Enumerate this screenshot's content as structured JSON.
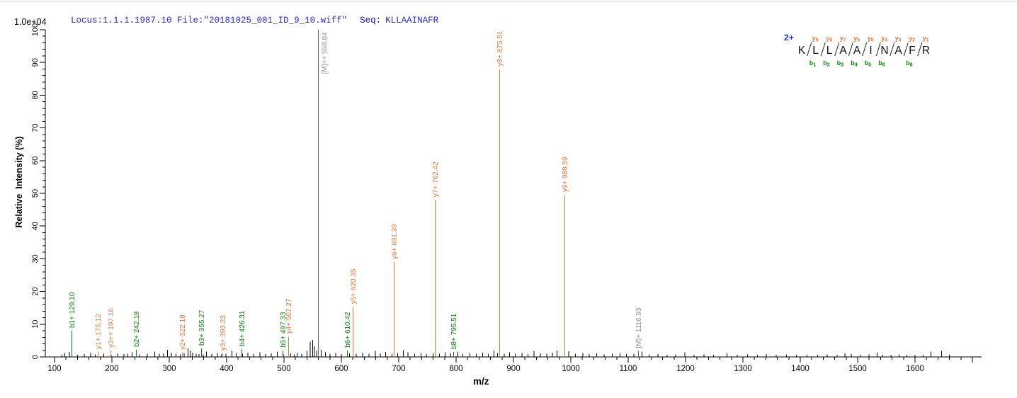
{
  "header": {
    "locus_file": "Locus:1.1.1.1987.10 File:\"20181025_001_ID_9_10.wiff\"",
    "seq_label": "Seq:",
    "sequence": "KLLAAINAFR"
  },
  "plot": {
    "scale_label": "1.0e+04",
    "y_axis_title": "Relative  Intensity (%)",
    "x_axis_title": "m/z"
  },
  "colors": {
    "b_ion": "#0B7F0B",
    "y_ion": "#DF7A3E",
    "precursor_line": "#5F5F5F",
    "precursor_label": "#909090",
    "noise": "#000000",
    "axis": "#000000",
    "header_blue": "#2A2AC0",
    "seq_label_navy": "#13138A",
    "charge_blue": "#2233CC",
    "residue_black": "#111111"
  },
  "chart_data": {
    "type": "bar",
    "subtype": "ms2-mass-spectrum",
    "title": "",
    "xlabel": "m/z",
    "ylabel": "Relative Intensity (%)",
    "intensity_scale": "1.0e+04",
    "xlim": [
      84,
      1716
    ],
    "ylim": [
      0,
      100
    ],
    "x_ticks": {
      "major": 100,
      "minor": 20,
      "first_label": 100,
      "last_label": 1600
    },
    "y_ticks": {
      "major": 10,
      "minor": 2
    },
    "grid": false,
    "annotated_peaks": [
      {
        "mz": 129.1,
        "intensity": 8.0,
        "label": "b1+ 129.10",
        "ion": "b"
      },
      {
        "mz": 175.12,
        "intensity": 1.5,
        "label": "y1+ 175.12",
        "ion": "y"
      },
      {
        "mz": 197.16,
        "intensity": 2.0,
        "label": "y3++ 197.16",
        "ion": "y"
      },
      {
        "mz": 242.18,
        "intensity": 2.2,
        "label": "b2+ 242.18",
        "ion": "b"
      },
      {
        "mz": 322.18,
        "intensity": 1.3,
        "label": "y2+ 322.18",
        "ion": "y"
      },
      {
        "mz": 355.27,
        "intensity": 2.6,
        "label": "b3+ 355.27",
        "ion": "b"
      },
      {
        "mz": 393.23,
        "intensity": 1.1,
        "label": "y3+ 393.23",
        "ion": "y"
      },
      {
        "mz": 426.31,
        "intensity": 2.4,
        "label": "b4+ 426.31",
        "ion": "b"
      },
      {
        "mz": 497.33,
        "intensity": 2.0,
        "label": "b5+ 497.33",
        "ion": "b"
      },
      {
        "mz": 507.27,
        "intensity": 6.2,
        "label": "y4+ 507.27",
        "ion": "y"
      },
      {
        "mz": 558.84,
        "intensity": 100,
        "label": "[M]++ 558.84",
        "ion": "M"
      },
      {
        "mz": 610.42,
        "intensity": 2.0,
        "label": "b6+ 610.42",
        "ion": "b"
      },
      {
        "mz": 620.35,
        "intensity": 15.3,
        "label": "y5+ 620.35",
        "ion": "y"
      },
      {
        "mz": 691.39,
        "intensity": 29.0,
        "label": "y6+ 691.39",
        "ion": "y"
      },
      {
        "mz": 762.42,
        "intensity": 48.0,
        "label": "y7+ 762.42",
        "ion": "y"
      },
      {
        "mz": 795.51,
        "intensity": 1.5,
        "label": "b8+ 795.51",
        "ion": "b"
      },
      {
        "mz": 875.51,
        "intensity": 88.0,
        "label": "y8+ 875.51",
        "ion": "y"
      },
      {
        "mz": 988.59,
        "intensity": 49.5,
        "label": "y9+ 988.59",
        "ion": "y"
      },
      {
        "mz": 1116.93,
        "intensity": 1.8,
        "label": "[M]+ 1116.93",
        "ion": "M"
      }
    ],
    "noise_peaks": [
      [
        113,
        0.8
      ],
      [
        118,
        1.2
      ],
      [
        126,
        1.5
      ],
      [
        140,
        0.7
      ],
      [
        152,
        0.9
      ],
      [
        163,
        1.3
      ],
      [
        171,
        0.8
      ],
      [
        186,
        1.0
      ],
      [
        199,
        0.7
      ],
      [
        210,
        1.1
      ],
      [
        221,
        0.9
      ],
      [
        228,
        1.0
      ],
      [
        235,
        1.4
      ],
      [
        248,
        0.8
      ],
      [
        262,
        1.0
      ],
      [
        275,
        1.6
      ],
      [
        283,
        1.0
      ],
      [
        290,
        1.1
      ],
      [
        297,
        2.2
      ],
      [
        304,
        1.3
      ],
      [
        312,
        1.0
      ],
      [
        319,
        0.8
      ],
      [
        326,
        1.1
      ],
      [
        333,
        2.6
      ],
      [
        337,
        1.9
      ],
      [
        341,
        1.3
      ],
      [
        347,
        1.0
      ],
      [
        352,
        0.9
      ],
      [
        359,
        0.8
      ],
      [
        365,
        1.6
      ],
      [
        374,
        0.9
      ],
      [
        384,
        1.2
      ],
      [
        391,
        0.8
      ],
      [
        399,
        1.0
      ],
      [
        409,
        1.9
      ],
      [
        417,
        1.2
      ],
      [
        428,
        1.0
      ],
      [
        437,
        1.3
      ],
      [
        447,
        1.0
      ],
      [
        458,
        1.4
      ],
      [
        468,
        0.9
      ],
      [
        478,
        1.1
      ],
      [
        488,
        1.6
      ],
      [
        499,
        0.9
      ],
      [
        512,
        1.1
      ],
      [
        518,
        0.8
      ],
      [
        523,
        1.3
      ],
      [
        531,
        1.0
      ],
      [
        540,
        1.8
      ],
      [
        546,
        4.6
      ],
      [
        550,
        5.2
      ],
      [
        553,
        3.2
      ],
      [
        557,
        2.0
      ],
      [
        565,
        2.2
      ],
      [
        572,
        1.4
      ],
      [
        580,
        1.0
      ],
      [
        590,
        1.2
      ],
      [
        600,
        0.9
      ],
      [
        614,
        1.1
      ],
      [
        626,
        1.0
      ],
      [
        637,
        1.3
      ],
      [
        648,
        1.0
      ],
      [
        659,
        1.8
      ],
      [
        668,
        1.1
      ],
      [
        677,
        1.5
      ],
      [
        688,
        1.0
      ],
      [
        698,
        1.2
      ],
      [
        708,
        2.1
      ],
      [
        716,
        1.4
      ],
      [
        728,
        1.0
      ],
      [
        739,
        1.2
      ],
      [
        748,
        0.9
      ],
      [
        760,
        1.1
      ],
      [
        771,
        1.0
      ],
      [
        781,
        1.4
      ],
      [
        791,
        1.1
      ],
      [
        803,
        1.6
      ],
      [
        812,
        1.0
      ],
      [
        824,
        1.2
      ],
      [
        835,
        1.0
      ],
      [
        846,
        1.3
      ],
      [
        856,
        1.0
      ],
      [
        866,
        1.9
      ],
      [
        872,
        1.2
      ],
      [
        884,
        1.0
      ],
      [
        893,
        1.4
      ],
      [
        903,
        1.0
      ],
      [
        915,
        1.2
      ],
      [
        925,
        0.9
      ],
      [
        936,
        1.8
      ],
      [
        947,
        1.1
      ],
      [
        958,
        1.0
      ],
      [
        968,
        1.3
      ],
      [
        976,
        2.0
      ],
      [
        996,
        1.7
      ],
      [
        1008,
        1.0
      ],
      [
        1021,
        1.2
      ],
      [
        1032,
        0.9
      ],
      [
        1045,
        1.1
      ],
      [
        1058,
        0.8
      ],
      [
        1072,
        1.0
      ],
      [
        1086,
        1.2
      ],
      [
        1097,
        0.9
      ],
      [
        1110,
        1.0
      ],
      [
        1124,
        1.6
      ],
      [
        1137,
        0.8
      ],
      [
        1152,
        0.9
      ],
      [
        1168,
        0.7
      ],
      [
        1183,
        0.8
      ],
      [
        1199,
        1.4
      ],
      [
        1215,
        0.7
      ],
      [
        1232,
        0.8
      ],
      [
        1249,
        0.6
      ],
      [
        1272,
        1.2
      ],
      [
        1290,
        0.7
      ],
      [
        1308,
        0.8
      ],
      [
        1325,
        0.6
      ],
      [
        1341,
        0.9
      ],
      [
        1358,
        0.7
      ],
      [
        1376,
        0.8
      ],
      [
        1393,
        0.6
      ],
      [
        1412,
        0.7
      ],
      [
        1430,
        0.6
      ],
      [
        1447,
        0.8
      ],
      [
        1464,
        0.6
      ],
      [
        1478,
        1.1
      ],
      [
        1489,
        1.0
      ],
      [
        1505,
        0.7
      ],
      [
        1520,
        0.8
      ],
      [
        1534,
        1.3
      ],
      [
        1544,
        0.7
      ],
      [
        1558,
        0.6
      ],
      [
        1572,
        0.8
      ],
      [
        1586,
        0.6
      ],
      [
        1600,
        0.7
      ],
      [
        1614,
        0.6
      ],
      [
        1628,
        1.6
      ],
      [
        1646,
        1.8
      ],
      [
        1660,
        0.6
      ]
    ]
  },
  "peptide_map": {
    "charge_label": "2+",
    "residues": [
      "K",
      "L",
      "L",
      "A",
      "A",
      "I",
      "N",
      "A",
      "F",
      "R"
    ],
    "y_ions": [
      {
        "boundary": 1,
        "label": "y9"
      },
      {
        "boundary": 2,
        "label": "y8"
      },
      {
        "boundary": 3,
        "label": "y7"
      },
      {
        "boundary": 4,
        "label": "y6"
      },
      {
        "boundary": 5,
        "label": "y5"
      },
      {
        "boundary": 6,
        "label": "y4"
      },
      {
        "boundary": 7,
        "label": "y3"
      },
      {
        "boundary": 8,
        "label": "y2"
      },
      {
        "boundary": 9,
        "label": "y1"
      }
    ],
    "b_ions": [
      {
        "boundary": 1,
        "label": "b1"
      },
      {
        "boundary": 2,
        "label": "b2"
      },
      {
        "boundary": 3,
        "label": "b3"
      },
      {
        "boundary": 4,
        "label": "b4"
      },
      {
        "boundary": 5,
        "label": "b5"
      },
      {
        "boundary": 6,
        "label": "b6"
      },
      {
        "boundary": 8,
        "label": "b8"
      }
    ]
  }
}
